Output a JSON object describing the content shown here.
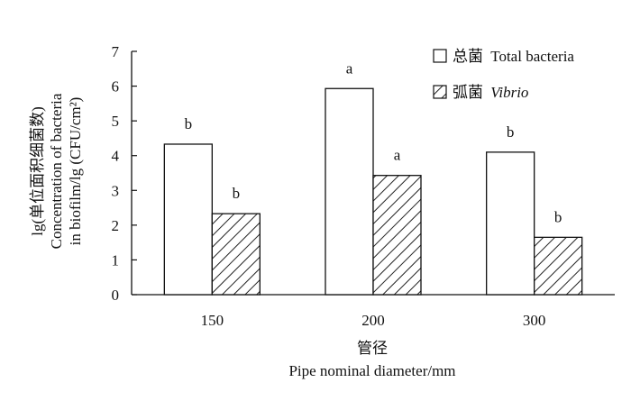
{
  "chart_data": {
    "type": "bar",
    "title": "",
    "categories": [
      "150",
      "200",
      "300"
    ],
    "series": [
      {
        "name": "总菌 Total bacteria",
        "name_cn": "总菌",
        "name_en": "Total bacteria",
        "values": [
          4.33,
          5.93,
          4.1
        ],
        "labels": [
          "b",
          "a",
          "b"
        ],
        "fill": "none",
        "color": "#ffffff"
      },
      {
        "name": "弧菌 Vibrio",
        "name_cn": "弧菌",
        "name_en": "Vibrio",
        "values": [
          2.33,
          3.43,
          1.65
        ],
        "labels": [
          "b",
          "a",
          "b"
        ],
        "fill": "diagonal-hatch",
        "color": "#333333"
      }
    ],
    "xlabel": "管径",
    "xlabel_en": "Pipe nominal diameter/mm",
    "ylabel_lines": [
      "lg(单位面积细菌数)",
      "Concentration of bacteria",
      "in biofilm/lg (CFU/cm²)"
    ],
    "ylim": [
      0,
      7
    ],
    "yticks": [
      0,
      1,
      2,
      3,
      4,
      5,
      6,
      7
    ],
    "grid": false,
    "legend_position": "top-right"
  }
}
